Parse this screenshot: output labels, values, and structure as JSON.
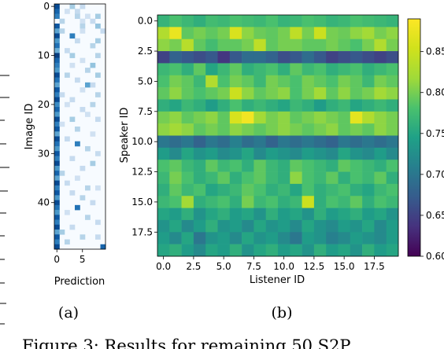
{
  "panels": {
    "a": {
      "label": "(a)"
    },
    "b": {
      "label": "(b)"
    }
  },
  "caption_fragment": "Figure 3: Results for remaining 50 S2P",
  "chart_data": [
    {
      "type": "heatmap",
      "panel": "a",
      "xlabel": "Prediction",
      "ylabel": "Image ID",
      "x_ticks": [
        0,
        5
      ],
      "y_ticks": [
        0,
        10,
        20,
        30,
        40
      ],
      "n_rows": 50,
      "n_cols": 10,
      "colormap": "Blues",
      "cells": [
        [
          0,
          0,
          0.9
        ],
        [
          0,
          3,
          0.35
        ],
        [
          0,
          5,
          0.25
        ],
        [
          1,
          0,
          0.8
        ],
        [
          1,
          2,
          0.2
        ],
        [
          1,
          4,
          0.25
        ],
        [
          2,
          0,
          0.7
        ],
        [
          2,
          4,
          0.3
        ],
        [
          2,
          6,
          0.2
        ],
        [
          2,
          8,
          0.35
        ],
        [
          3,
          1,
          0.3
        ],
        [
          3,
          5,
          0.2
        ],
        [
          3,
          7,
          0.25
        ],
        [
          4,
          0,
          0.85
        ],
        [
          4,
          5,
          0.3
        ],
        [
          4,
          8,
          0.4
        ],
        [
          5,
          0,
          0.55
        ],
        [
          5,
          1,
          0.3
        ],
        [
          5,
          5,
          0.2
        ],
        [
          5,
          9,
          0.25
        ],
        [
          6,
          0,
          0.9
        ],
        [
          6,
          3,
          0.7
        ],
        [
          7,
          0,
          0.6
        ],
        [
          7,
          4,
          0.25
        ],
        [
          7,
          8,
          0.35
        ],
        [
          8,
          0,
          0.75
        ],
        [
          8,
          7,
          0.3
        ],
        [
          9,
          0,
          0.5
        ],
        [
          9,
          2,
          0.25
        ],
        [
          10,
          0,
          0.95
        ],
        [
          10,
          3,
          0.35
        ],
        [
          10,
          8,
          0.3
        ],
        [
          11,
          0,
          0.8
        ],
        [
          11,
          5,
          0.2
        ],
        [
          12,
          0,
          0.7
        ],
        [
          12,
          3,
          0.2
        ],
        [
          12,
          7,
          0.4
        ],
        [
          13,
          0,
          0.6
        ],
        [
          13,
          6,
          0.3
        ],
        [
          14,
          0,
          0.9
        ],
        [
          14,
          2,
          0.3
        ],
        [
          14,
          8,
          0.35
        ],
        [
          15,
          0,
          0.75
        ],
        [
          15,
          4,
          0.25
        ],
        [
          16,
          0,
          0.55
        ],
        [
          16,
          6,
          0.55
        ],
        [
          16,
          7,
          0.25
        ],
        [
          17,
          0,
          0.85
        ],
        [
          17,
          5,
          0.2
        ],
        [
          18,
          0,
          0.7
        ],
        [
          18,
          1,
          0.25
        ],
        [
          18,
          8,
          0.3
        ],
        [
          19,
          0,
          0.9
        ],
        [
          19,
          3,
          0.25
        ],
        [
          20,
          0,
          0.65
        ],
        [
          20,
          2,
          0.2
        ],
        [
          20,
          7,
          0.3
        ],
        [
          21,
          0,
          0.8
        ],
        [
          21,
          5,
          0.25
        ],
        [
          22,
          0,
          0.6
        ],
        [
          22,
          6,
          0.2
        ],
        [
          23,
          0,
          0.9
        ],
        [
          23,
          3,
          0.35
        ],
        [
          23,
          8,
          0.25
        ],
        [
          24,
          0,
          0.7
        ],
        [
          24,
          1,
          0.2
        ],
        [
          25,
          0,
          0.85
        ],
        [
          25,
          4,
          0.3
        ],
        [
          26,
          0,
          0.55
        ],
        [
          26,
          7,
          0.2
        ],
        [
          27,
          0,
          0.9
        ],
        [
          27,
          2,
          0.25
        ],
        [
          28,
          0,
          0.75
        ],
        [
          28,
          4,
          0.7
        ],
        [
          29,
          0,
          0.6
        ],
        [
          29,
          6,
          0.3
        ],
        [
          30,
          0,
          0.85
        ],
        [
          30,
          8,
          0.25
        ],
        [
          31,
          0,
          0.7
        ],
        [
          31,
          3,
          0.25
        ],
        [
          32,
          0,
          0.9
        ],
        [
          32,
          7,
          0.35
        ],
        [
          33,
          0,
          0.6
        ],
        [
          33,
          5,
          0.25
        ],
        [
          34,
          0,
          0.8
        ],
        [
          34,
          1,
          0.3
        ],
        [
          35,
          0,
          0.55
        ],
        [
          35,
          4,
          0.2
        ],
        [
          36,
          0,
          0.9
        ],
        [
          36,
          2,
          0.25
        ],
        [
          37,
          0,
          0.7
        ],
        [
          37,
          6,
          0.3
        ],
        [
          37,
          8,
          0.2
        ],
        [
          38,
          0,
          0.85
        ],
        [
          38,
          3,
          0.25
        ],
        [
          39,
          0,
          0.6
        ],
        [
          39,
          5,
          0.3
        ],
        [
          40,
          0,
          0.9
        ],
        [
          40,
          7,
          0.25
        ],
        [
          41,
          0,
          0.75
        ],
        [
          41,
          4,
          0.75
        ],
        [
          42,
          0,
          0.6
        ],
        [
          42,
          2,
          0.2
        ],
        [
          43,
          0,
          0.85
        ],
        [
          43,
          6,
          0.3
        ],
        [
          44,
          0,
          0.7
        ],
        [
          44,
          8,
          0.25
        ],
        [
          45,
          0,
          0.9
        ],
        [
          45,
          3,
          0.25
        ],
        [
          46,
          0,
          0.55
        ],
        [
          46,
          1,
          0.35
        ],
        [
          47,
          0,
          0.85
        ],
        [
          47,
          5,
          0.3
        ],
        [
          47,
          8,
          0.25
        ],
        [
          48,
          0,
          0.7
        ],
        [
          48,
          2,
          0.3
        ],
        [
          49,
          0,
          0.9
        ],
        [
          49,
          9,
          0.8
        ]
      ]
    },
    {
      "type": "heatmap",
      "panel": "b",
      "xlabel": "Listener ID",
      "ylabel": "Speaker ID",
      "x_ticks": [
        "0.0",
        "2.5",
        "5.0",
        "7.5",
        "10.0",
        "12.5",
        "15.0",
        "17.5"
      ],
      "y_ticks": [
        "0.0",
        "2.5",
        "5.0",
        "7.5",
        "10.0",
        "12.5",
        "15.0",
        "17.5"
      ],
      "n_rows": 20,
      "n_cols": 20,
      "colormap": "viridis",
      "colorbar": {
        "vmin": 0.6,
        "vmax": 0.89,
        "ticks": [
          "0.60",
          "0.65",
          "0.70",
          "0.75",
          "0.80",
          "0.85"
        ]
      },
      "values": [
        [
          0.765,
          0.78,
          0.77,
          0.76,
          0.775,
          0.77,
          0.78,
          0.775,
          0.77,
          0.78,
          0.765,
          0.77,
          0.78,
          0.775,
          0.765,
          0.77,
          0.78,
          0.775,
          0.77,
          0.765
        ],
        [
          0.83,
          0.875,
          0.79,
          0.8,
          0.79,
          0.8,
          0.86,
          0.81,
          0.795,
          0.79,
          0.8,
          0.84,
          0.8,
          0.85,
          0.8,
          0.795,
          0.81,
          0.82,
          0.8,
          0.81
        ],
        [
          0.81,
          0.8,
          0.835,
          0.79,
          0.775,
          0.79,
          0.79,
          0.8,
          0.84,
          0.79,
          0.8,
          0.8,
          0.79,
          0.79,
          0.8,
          0.79,
          0.78,
          0.8,
          0.83,
          0.8
        ],
        [
          0.65,
          0.68,
          0.67,
          0.66,
          0.67,
          0.64,
          0.67,
          0.69,
          0.69,
          0.68,
          0.66,
          0.67,
          0.69,
          0.67,
          0.65,
          0.66,
          0.67,
          0.66,
          0.65,
          0.66
        ],
        [
          0.77,
          0.78,
          0.76,
          0.79,
          0.75,
          0.77,
          0.79,
          0.76,
          0.77,
          0.78,
          0.76,
          0.79,
          0.77,
          0.78,
          0.76,
          0.77,
          0.78,
          0.76,
          0.77,
          0.78
        ],
        [
          0.78,
          0.8,
          0.79,
          0.77,
          0.83,
          0.78,
          0.8,
          0.79,
          0.77,
          0.8,
          0.79,
          0.78,
          0.8,
          0.79,
          0.78,
          0.8,
          0.79,
          0.77,
          0.8,
          0.79
        ],
        [
          0.79,
          0.81,
          0.79,
          0.78,
          0.79,
          0.8,
          0.85,
          0.81,
          0.79,
          0.8,
          0.81,
          0.78,
          0.8,
          0.82,
          0.79,
          0.81,
          0.79,
          0.8,
          0.82,
          0.81
        ],
        [
          0.76,
          0.75,
          0.77,
          0.76,
          0.74,
          0.76,
          0.78,
          0.76,
          0.77,
          0.76,
          0.75,
          0.77,
          0.76,
          0.74,
          0.76,
          0.77,
          0.75,
          0.76,
          0.77,
          0.76
        ],
        [
          0.8,
          0.81,
          0.79,
          0.8,
          0.81,
          0.79,
          0.86,
          0.88,
          0.82,
          0.8,
          0.81,
          0.79,
          0.8,
          0.81,
          0.8,
          0.79,
          0.87,
          0.83,
          0.81,
          0.8
        ],
        [
          0.81,
          0.82,
          0.81,
          0.79,
          0.8,
          0.79,
          0.81,
          0.8,
          0.79,
          0.8,
          0.81,
          0.8,
          0.79,
          0.8,
          0.81,
          0.79,
          0.8,
          0.79,
          0.81,
          0.8
        ],
        [
          0.7,
          0.69,
          0.7,
          0.68,
          0.7,
          0.69,
          0.71,
          0.69,
          0.7,
          0.68,
          0.7,
          0.69,
          0.7,
          0.69,
          0.68,
          0.7,
          0.69,
          0.7,
          0.69,
          0.7
        ],
        [
          0.74,
          0.72,
          0.75,
          0.73,
          0.74,
          0.72,
          0.73,
          0.75,
          0.72,
          0.74,
          0.73,
          0.72,
          0.74,
          0.73,
          0.72,
          0.75,
          0.73,
          0.72,
          0.74,
          0.72
        ],
        [
          0.78,
          0.79,
          0.77,
          0.76,
          0.79,
          0.77,
          0.78,
          0.76,
          0.79,
          0.77,
          0.76,
          0.79,
          0.78,
          0.77,
          0.76,
          0.79,
          0.78,
          0.77,
          0.76,
          0.78
        ],
        [
          0.77,
          0.8,
          0.78,
          0.76,
          0.77,
          0.79,
          0.76,
          0.78,
          0.79,
          0.77,
          0.76,
          0.81,
          0.78,
          0.77,
          0.79,
          0.76,
          0.78,
          0.77,
          0.79,
          0.76
        ],
        [
          0.76,
          0.79,
          0.77,
          0.78,
          0.75,
          0.76,
          0.77,
          0.79,
          0.78,
          0.76,
          0.77,
          0.75,
          0.78,
          0.76,
          0.77,
          0.78,
          0.76,
          0.75,
          0.77,
          0.78
        ],
        [
          0.77,
          0.78,
          0.82,
          0.76,
          0.77,
          0.78,
          0.76,
          0.8,
          0.77,
          0.78,
          0.76,
          0.77,
          0.85,
          0.76,
          0.78,
          0.77,
          0.79,
          0.76,
          0.78,
          0.77
        ],
        [
          0.75,
          0.74,
          0.76,
          0.73,
          0.75,
          0.76,
          0.74,
          0.75,
          0.73,
          0.76,
          0.74,
          0.75,
          0.73,
          0.76,
          0.74,
          0.75,
          0.76,
          0.74,
          0.75,
          0.73
        ],
        [
          0.73,
          0.75,
          0.72,
          0.74,
          0.76,
          0.73,
          0.74,
          0.72,
          0.75,
          0.73,
          0.74,
          0.72,
          0.75,
          0.73,
          0.72,
          0.74,
          0.73,
          0.75,
          0.72,
          0.74
        ],
        [
          0.74,
          0.72,
          0.75,
          0.7,
          0.73,
          0.74,
          0.72,
          0.75,
          0.73,
          0.74,
          0.72,
          0.7,
          0.74,
          0.73,
          0.71,
          0.72,
          0.74,
          0.73,
          0.72,
          0.74
        ],
        [
          0.75,
          0.76,
          0.74,
          0.72,
          0.75,
          0.74,
          0.76,
          0.73,
          0.75,
          0.76,
          0.74,
          0.75,
          0.73,
          0.76,
          0.74,
          0.75,
          0.73,
          0.76,
          0.74,
          0.75
        ]
      ]
    }
  ]
}
